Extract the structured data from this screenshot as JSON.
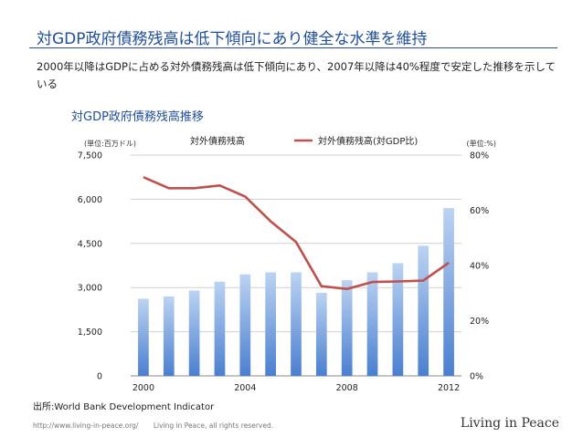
{
  "slide": {
    "title": "対GDP政府債務残高は低下傾向にあり健全な水準を維持",
    "summary": "2000年以降はGDPに占める対外債務残高は低下傾向にあり、2007年以降は40%程度で安定した推移を示している",
    "source": "出所:World Bank Development Indicator",
    "footer_url": "http://www.living-in-peace.org/",
    "footer_rights": "Living in Peace, all rights reserved.",
    "brand": "Living in Peace"
  },
  "chart_data": {
    "type": "bar+line",
    "title": "対GDP政府債務残高推移",
    "x": [
      2000,
      2001,
      2002,
      2003,
      2004,
      2005,
      2006,
      2007,
      2008,
      2009,
      2010,
      2011,
      2012
    ],
    "x_tick_labels": [
      "2000",
      "2004",
      "2008",
      "2012"
    ],
    "left_axis": {
      "unit_label": "(単位:百万ドル)",
      "ylim": [
        0,
        7500
      ],
      "ticks": [
        "0",
        "1,500",
        "3,000",
        "4,500",
        "6,000",
        "7,500"
      ]
    },
    "right_axis": {
      "unit_label": "(単位:%)",
      "ylim": [
        0,
        80
      ],
      "ticks": [
        "0%",
        "20%",
        "40%",
        "60%",
        "80%"
      ]
    },
    "series": [
      {
        "name": "対外債務残高",
        "kind": "bar",
        "axis": "left",
        "color": "#4a7fd0",
        "values": [
          2620,
          2700,
          2900,
          3200,
          3450,
          3520,
          3520,
          2820,
          3250,
          3520,
          3830,
          4420,
          5700
        ]
      },
      {
        "name": "対外債務残高(対GDP比)",
        "kind": "line",
        "axis": "right",
        "color": "#c0504d",
        "values": [
          72,
          68,
          68,
          69,
          65,
          56,
          48.5,
          32.5,
          31.5,
          34,
          34.2,
          34.5,
          41
        ]
      }
    ],
    "grid": true,
    "legend": "top"
  }
}
